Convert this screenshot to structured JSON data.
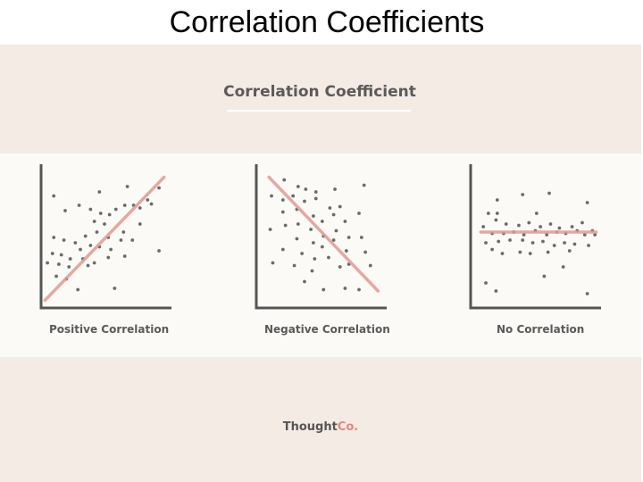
{
  "slide": {
    "title": "Correlation Coefficients"
  },
  "infographic": {
    "title": "Correlation Coefficient",
    "brand": {
      "primary": "Thought",
      "accent": "Co."
    },
    "colors": {
      "panel": "#f3ebe4",
      "band": "#fbfaf7",
      "axis": "#555555",
      "dot": "#6b6b6b",
      "trend": "#e09a92",
      "brand_accent": "#e0897f"
    }
  },
  "chart_data": [
    {
      "type": "scatter",
      "title": "Positive Correlation",
      "xlabel": "",
      "ylabel": "",
      "xlim": [
        0,
        100
      ],
      "ylim": [
        0,
        100
      ],
      "grid": false,
      "trend_line": [
        [
          3,
          5
        ],
        [
          97,
          97
        ]
      ],
      "points": [
        [
          10,
          83
        ],
        [
          46,
          86
        ],
        [
          68,
          90
        ],
        [
          93,
          89
        ],
        [
          84,
          80
        ],
        [
          19,
          72
        ],
        [
          30,
          76
        ],
        [
          39,
          73
        ],
        [
          47,
          70
        ],
        [
          54,
          69
        ],
        [
          59,
          73
        ],
        [
          66,
          76
        ],
        [
          73,
          76
        ],
        [
          78,
          74
        ],
        [
          87,
          77
        ],
        [
          42,
          64
        ],
        [
          50,
          62
        ],
        [
          65,
          56
        ],
        [
          78,
          62
        ],
        [
          10,
          52
        ],
        [
          18,
          50
        ],
        [
          27,
          48
        ],
        [
          35,
          53
        ],
        [
          44,
          56
        ],
        [
          53,
          52
        ],
        [
          63,
          50
        ],
        [
          31,
          43
        ],
        [
          39,
          46
        ],
        [
          46,
          45
        ],
        [
          55,
          43
        ],
        [
          72,
          50
        ],
        [
          93,
          42
        ],
        [
          9,
          40
        ],
        [
          16,
          39
        ],
        [
          23,
          36
        ],
        [
          33,
          36
        ],
        [
          42,
          33
        ],
        [
          53,
          37
        ],
        [
          5,
          33
        ],
        [
          14,
          32
        ],
        [
          22,
          30
        ],
        [
          37,
          31
        ],
        [
          12,
          23
        ],
        [
          20,
          21
        ],
        [
          29,
          13
        ],
        [
          58,
          14
        ],
        [
          66,
          38
        ]
      ]
    },
    {
      "type": "scatter",
      "title": "Negative Correlation",
      "xlabel": "",
      "ylabel": "",
      "xlim": [
        0,
        100
      ],
      "ylim": [
        0,
        100
      ],
      "grid": false,
      "trend_line": [
        [
          10,
          97
        ],
        [
          96,
          12
        ]
      ],
      "points": [
        [
          22,
          95
        ],
        [
          33,
          90
        ],
        [
          39,
          88
        ],
        [
          47,
          86
        ],
        [
          62,
          88
        ],
        [
          85,
          91
        ],
        [
          12,
          83
        ],
        [
          21,
          80
        ],
        [
          29,
          83
        ],
        [
          38,
          79
        ],
        [
          47,
          81
        ],
        [
          58,
          74
        ],
        [
          66,
          75
        ],
        [
          81,
          70
        ],
        [
          21,
          71
        ],
        [
          32,
          73
        ],
        [
          45,
          68
        ],
        [
          52,
          64
        ],
        [
          61,
          69
        ],
        [
          70,
          64
        ],
        [
          11,
          58
        ],
        [
          23,
          61
        ],
        [
          33,
          62
        ],
        [
          43,
          58
        ],
        [
          53,
          53
        ],
        [
          63,
          57
        ],
        [
          73,
          52
        ],
        [
          32,
          51
        ],
        [
          45,
          48
        ],
        [
          52,
          45
        ],
        [
          61,
          50
        ],
        [
          71,
          42
        ],
        [
          83,
          52
        ],
        [
          21,
          43
        ],
        [
          36,
          40
        ],
        [
          46,
          36
        ],
        [
          57,
          37
        ],
        [
          73,
          32
        ],
        [
          86,
          41
        ],
        [
          13,
          33
        ],
        [
          30,
          31
        ],
        [
          44,
          27
        ],
        [
          66,
          30
        ],
        [
          90,
          31
        ],
        [
          38,
          19
        ],
        [
          53,
          13
        ],
        [
          70,
          14
        ],
        [
          81,
          13
        ]
      ]
    },
    {
      "type": "scatter",
      "title": "No Correlation",
      "xlabel": "",
      "ylabel": "",
      "xlim": [
        0,
        100
      ],
      "ylim": [
        0,
        100
      ],
      "grid": false,
      "trend_line": [
        [
          8,
          56
        ],
        [
          99,
          56
        ]
      ],
      "points": [
        [
          21,
          80
        ],
        [
          41,
          84
        ],
        [
          62,
          85
        ],
        [
          92,
          78
        ],
        [
          14,
          70
        ],
        [
          21,
          70
        ],
        [
          52,
          70
        ],
        [
          10,
          60
        ],
        [
          20,
          65
        ],
        [
          28,
          62
        ],
        [
          38,
          61
        ],
        [
          46,
          63
        ],
        [
          55,
          60
        ],
        [
          63,
          62
        ],
        [
          70,
          59
        ],
        [
          80,
          60
        ],
        [
          88,
          63
        ],
        [
          96,
          57
        ],
        [
          17,
          55
        ],
        [
          26,
          55
        ],
        [
          34,
          56
        ],
        [
          42,
          54
        ],
        [
          51,
          57
        ],
        [
          60,
          54
        ],
        [
          68,
          56
        ],
        [
          75,
          55
        ],
        [
          84,
          57
        ],
        [
          90,
          54
        ],
        [
          98,
          54
        ],
        [
          12,
          48
        ],
        [
          22,
          49
        ],
        [
          31,
          50
        ],
        [
          41,
          50
        ],
        [
          49,
          48
        ],
        [
          57,
          49
        ],
        [
          66,
          46
        ],
        [
          74,
          48
        ],
        [
          82,
          47
        ],
        [
          93,
          46
        ],
        [
          17,
          43
        ],
        [
          25,
          40
        ],
        [
          39,
          41
        ],
        [
          47,
          40
        ],
        [
          61,
          41
        ],
        [
          78,
          42
        ],
        [
          12,
          18
        ],
        [
          20,
          12
        ],
        [
          58,
          23
        ],
        [
          73,
          30
        ],
        [
          92,
          10
        ]
      ]
    }
  ]
}
